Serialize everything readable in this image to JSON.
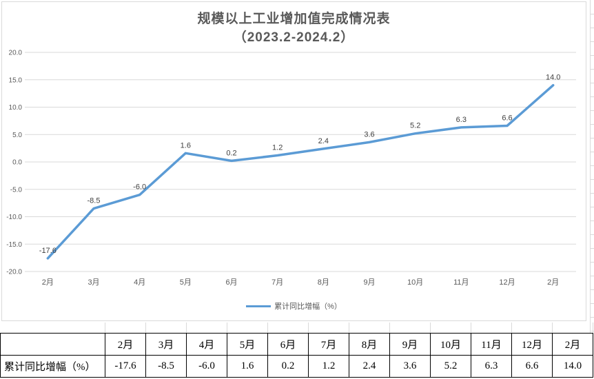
{
  "chart": {
    "title": "规模以上工业增加值完成情况表",
    "subtitle": "（2023.2-2024.2）",
    "legend_label": "累计同比增幅（%）",
    "line_color": "#5B9BD5",
    "gridline_color": "#D9D9D9",
    "axis_label_color": "#595959",
    "data_label_color": "#404040"
  },
  "chart_data": {
    "type": "line",
    "title": "规模以上工业增加值完成情况表（2023.2-2024.2）",
    "categories": [
      "2月",
      "3月",
      "4月",
      "5月",
      "6月",
      "7月",
      "8月",
      "9月",
      "10月",
      "11月",
      "12月",
      "2月"
    ],
    "series": [
      {
        "name": "累计同比增幅（%）",
        "values": [
          -17.6,
          -8.5,
          -6.0,
          1.6,
          0.2,
          1.2,
          2.4,
          3.6,
          5.2,
          6.3,
          6.6,
          14.0
        ]
      }
    ],
    "ylim": [
      -20.0,
      20.0
    ],
    "ytick_step": 5.0,
    "ytick_labels": [
      "20.0",
      "15.0",
      "10.0",
      "5.0",
      "0.0",
      "-5.0",
      "-10.0",
      "-15.0",
      "-20.0"
    ],
    "grid": true,
    "data_labels": true,
    "legend_position": "bottom"
  },
  "table": {
    "row_header": "累计同比增幅（%）",
    "columns": [
      "2月",
      "3月",
      "4月",
      "5月",
      "6月",
      "7月",
      "8月",
      "9月",
      "10月",
      "11月",
      "12月",
      "2月"
    ],
    "values": [
      "-17.6",
      "-8.5",
      "-6.0",
      "1.6",
      "0.2",
      "1.2",
      "2.4",
      "3.6",
      "5.2",
      "6.3",
      "6.6",
      "14.0"
    ]
  }
}
